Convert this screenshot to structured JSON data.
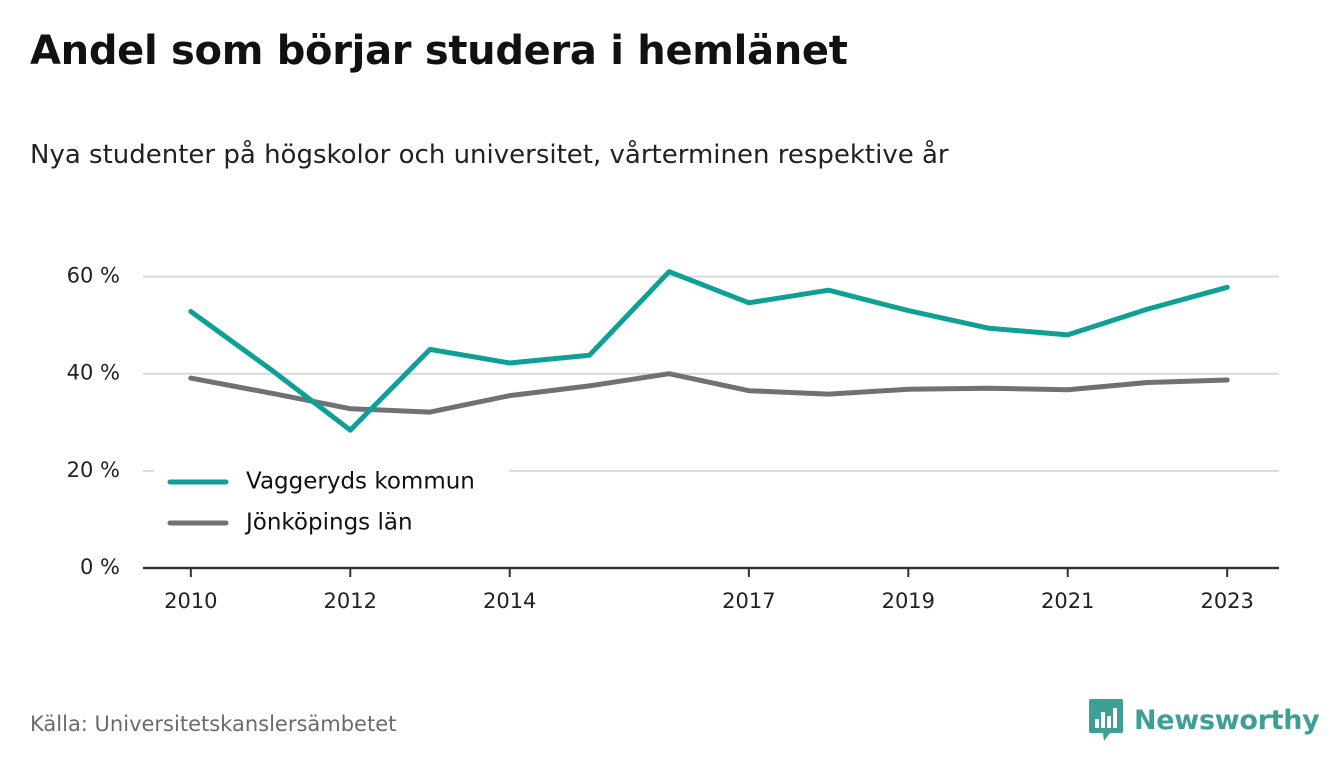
{
  "title": "Andel som börjar studera i hemlänet",
  "subtitle": "Nya studenter på högskolor och universitet, vårterminen respektive år",
  "source": "Källa: Universitetskanslersämbetet",
  "brand": {
    "name": "Newsworthy",
    "icon": "newsworthy-logo-icon",
    "color": "#3e9f97"
  },
  "chart_data": {
    "type": "line",
    "title": "Andel som börjar studera i hemlänet",
    "subtitle": "Nya studenter på högskolor och universitet, vårterminen respektive år",
    "x": [
      2010,
      2011,
      2012,
      2013,
      2014,
      2015,
      2016,
      2017,
      2018,
      2019,
      2020,
      2021,
      2022,
      2023
    ],
    "x_tick_values": [
      2010,
      2012,
      2014,
      2017,
      2019,
      2021,
      2023
    ],
    "x_tick_labels": [
      "2010",
      "2012",
      "2014",
      "2017",
      "2019",
      "2021",
      "2023"
    ],
    "y_tick_values": [
      0,
      20,
      40,
      60
    ],
    "y_tick_labels": [
      "0 %",
      "20 %",
      "40 %",
      "60 %"
    ],
    "xlim": [
      2009.4,
      2023.65
    ],
    "ylim": [
      0,
      70
    ],
    "grid": "horizontal",
    "legend_placement": "bottom-left",
    "series": [
      {
        "name": "Vaggeryds kommun",
        "color": "#0fa095",
        "values": [
          52.8,
          40.9,
          28.4,
          45.0,
          42.2,
          43.8,
          61.0,
          54.6,
          57.2,
          53.0,
          49.4,
          48.0,
          53.3,
          57.8
        ]
      },
      {
        "name": "Jönköpings län",
        "color": "#717077",
        "values": [
          39.1,
          36.0,
          32.8,
          32.1,
          35.5,
          37.5,
          40.0,
          36.5,
          35.8,
          36.8,
          37.0,
          36.7,
          38.2,
          38.7
        ]
      }
    ]
  }
}
